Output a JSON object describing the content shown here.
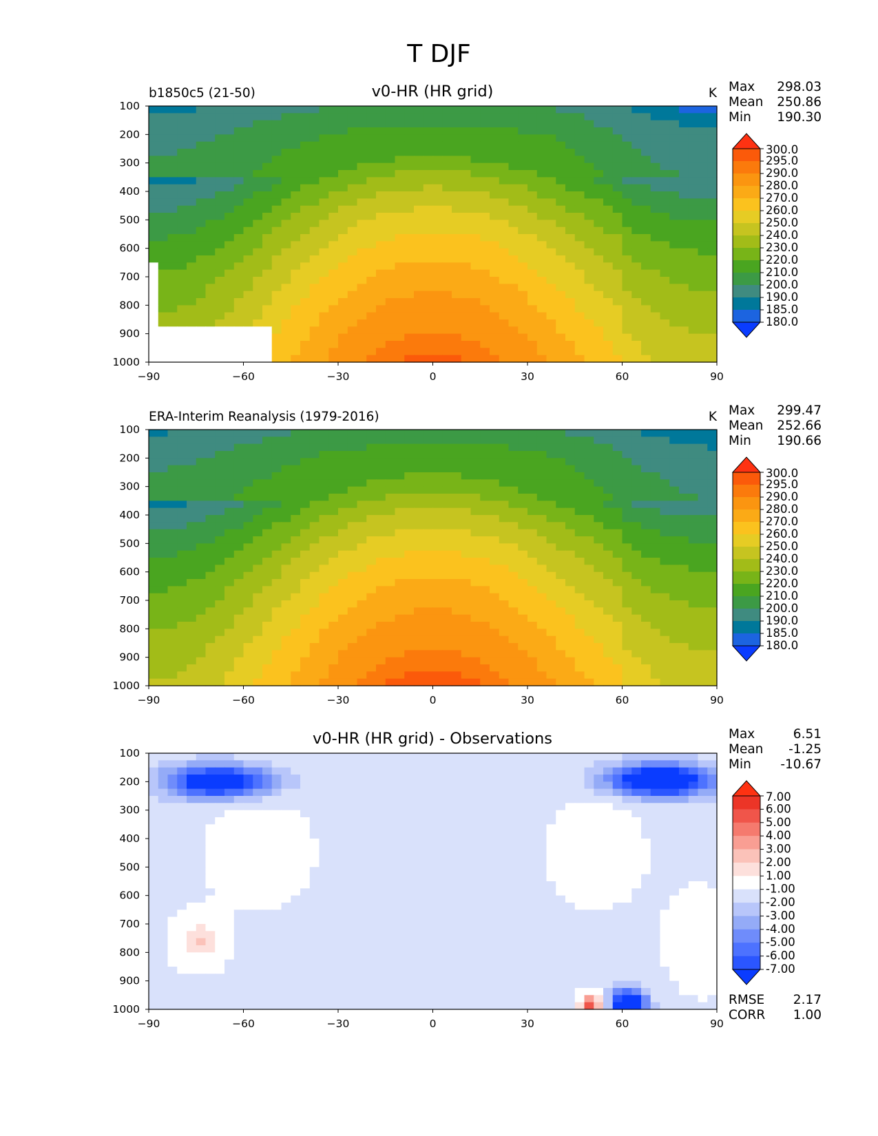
{
  "figure_title": "T DJF",
  "colors": {
    "temperature_levels": [
      "#0a3cff",
      "#1c64e0",
      "#00789a",
      "#3f8b80",
      "#3c9a45",
      "#4aa520",
      "#78b418",
      "#a2bc18",
      "#c6c420",
      "#e6cc24",
      "#fbc21e",
      "#fbaa16",
      "#fb9510",
      "#fb7a0c",
      "#fb5a0a",
      "#fe3212"
    ],
    "difference_levels": [
      "#0a3cff",
      "#2b56ff",
      "#4d72ff",
      "#6f8cfb",
      "#94abf7",
      "#b8c6fa",
      "#d9e1fb",
      "#ffffff",
      "#fde0dc",
      "#fbc2b9",
      "#f99e93",
      "#f57a6e",
      "#f0554a",
      "#ec3527",
      "#fe3212"
    ]
  },
  "chart_data": [
    {
      "type": "contour",
      "title": "v0-HR (HR grid)",
      "left_label": "b1850c5 (21-50)",
      "units": "K",
      "xlabel": "",
      "ylabel": "",
      "x_ticks": [
        "−90",
        "−60",
        "−30",
        "0",
        "30",
        "60",
        "90"
      ],
      "y_ticks": [
        "100",
        "200",
        "300",
        "400",
        "500",
        "600",
        "700",
        "800",
        "900",
        "1000"
      ],
      "xlim": [
        -90,
        90
      ],
      "ylim": [
        1000,
        100
      ],
      "stats": {
        "max_label": "Max",
        "max": "298.03",
        "mean_label": "Mean",
        "mean": "250.86",
        "min_label": "Min",
        "min": "190.30"
      },
      "colorbar_labels": [
        "300.0",
        "295.0",
        "290.0",
        "280.0",
        "270.0",
        "260.0",
        "250.0",
        "240.0",
        "230.0",
        "220.0",
        "210.0",
        "200.0",
        "190.0",
        "185.0",
        "180.0"
      ],
      "levels": [
        180,
        185,
        190,
        200,
        210,
        220,
        230,
        240,
        250,
        260,
        270,
        280,
        290,
        295,
        300
      ]
    },
    {
      "type": "contour",
      "title": "",
      "left_label": "ERA-Interim Reanalysis (1979-2016)",
      "units": "K",
      "xlabel": "",
      "ylabel": "",
      "x_ticks": [
        "−90",
        "−60",
        "−30",
        "0",
        "30",
        "60",
        "90"
      ],
      "y_ticks": [
        "100",
        "200",
        "300",
        "400",
        "500",
        "600",
        "700",
        "800",
        "900",
        "1000"
      ],
      "xlim": [
        -90,
        90
      ],
      "ylim": [
        1000,
        100
      ],
      "stats": {
        "max_label": "Max",
        "max": "299.47",
        "mean_label": "Mean",
        "mean": "252.66",
        "min_label": "Min",
        "min": "190.66"
      },
      "colorbar_labels": [
        "300.0",
        "295.0",
        "290.0",
        "280.0",
        "270.0",
        "260.0",
        "250.0",
        "240.0",
        "230.0",
        "220.0",
        "210.0",
        "200.0",
        "190.0",
        "185.0",
        "180.0"
      ],
      "levels": [
        180,
        185,
        190,
        200,
        210,
        220,
        230,
        240,
        250,
        260,
        270,
        280,
        290,
        295,
        300
      ]
    },
    {
      "type": "contour",
      "title": "v0-HR (HR grid) - Observations",
      "left_label": "",
      "units": "",
      "xlabel": "",
      "ylabel": "",
      "x_ticks": [
        "−90",
        "−60",
        "−30",
        "0",
        "30",
        "60",
        "90"
      ],
      "y_ticks": [
        "100",
        "200",
        "300",
        "400",
        "500",
        "600",
        "700",
        "800",
        "900",
        "1000"
      ],
      "xlim": [
        -90,
        90
      ],
      "ylim": [
        1000,
        100
      ],
      "stats": {
        "max_label": "Max",
        "max": "6.51",
        "mean_label": "Mean",
        "mean": "-1.25",
        "min_label": "Min",
        "min": "-10.67"
      },
      "metrics": {
        "rmse_label": "RMSE",
        "rmse": "2.17",
        "corr_label": "CORR",
        "corr": "1.00"
      },
      "colorbar_labels": [
        "7.00",
        "6.00",
        "5.00",
        "4.00",
        "3.00",
        "2.00",
        "1.00",
        "-1.00",
        "-2.00",
        "-3.00",
        "-4.00",
        "-5.00",
        "-6.00",
        "-7.00"
      ],
      "levels": [
        -7,
        -6,
        -5,
        -4,
        -3,
        -2,
        -1,
        1,
        2,
        3,
        4,
        5,
        6,
        7
      ]
    }
  ]
}
